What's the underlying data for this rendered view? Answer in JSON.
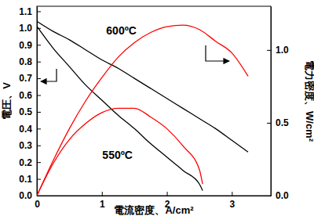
{
  "chart_data": {
    "type": "line",
    "xlabel": "電流密度、A/cm²",
    "ylabel": "電圧、V",
    "y2label": "電力密度、W/cm²",
    "xlim": [
      0,
      3.6
    ],
    "xticks": [
      0,
      1,
      2,
      3
    ],
    "ylim": [
      0,
      1.13
    ],
    "yticks": [
      {
        "value": 0,
        "label": "0.0"
      },
      0.1,
      0.2,
      0.3,
      0.4,
      0.5,
      0.6,
      0.7,
      0.8,
      0.9,
      {
        "value": 1,
        "label": "1.0"
      },
      1.1
    ],
    "y2lim": [
      0,
      1.3
    ],
    "y2ticks": [
      {
        "value": 0,
        "label": "0.0"
      },
      0.5,
      {
        "value": 1,
        "label": "1.0"
      }
    ],
    "grid": false,
    "series": [
      {
        "color": "#000000",
        "line_style": "solid",
        "x": [
          0,
          0.25,
          0.5,
          0.75,
          1,
          1.25,
          1.5,
          1.75,
          2,
          2.25,
          2.5,
          2.75,
          3,
          3.25
        ],
        "values": [
          1.04,
          0.98,
          0.93,
          0.87,
          0.81,
          0.76,
          0.7,
          0.64,
          0.58,
          0.52,
          0.46,
          0.4,
          0.33,
          0.26
        ]
      },
      {
        "color": "#000000",
        "line_style": "solid",
        "x": [
          0,
          0.25,
          0.5,
          0.75,
          1,
          1.25,
          1.5,
          1.75,
          2,
          2.25,
          2.5,
          2.55
        ],
        "values": [
          1.01,
          0.88,
          0.77,
          0.66,
          0.57,
          0.48,
          0.4,
          0.31,
          0.23,
          0.15,
          0.07,
          0.03
        ]
      },
      {
        "color": "#ff0000",
        "line_style": "solid",
        "axis": "y2",
        "x": [
          0,
          0.25,
          0.5,
          0.75,
          1,
          1.25,
          1.5,
          1.75,
          2,
          2.25,
          2.5,
          2.75,
          3,
          3.25
        ],
        "values": [
          0,
          0.24,
          0.46,
          0.65,
          0.81,
          0.95,
          1.05,
          1.12,
          1.16,
          1.17,
          1.14,
          1.06,
          0.98,
          0.82
        ]
      },
      {
        "color": "#ff0000",
        "line_style": "solid",
        "axis": "y2",
        "x": [
          0,
          0.25,
          0.5,
          0.75,
          1,
          1.25,
          1.5,
          1.75,
          2,
          2.25,
          2.5,
          2.55
        ],
        "values": [
          0,
          0.22,
          0.385,
          0.495,
          0.57,
          0.6,
          0.6,
          0.54,
          0.46,
          0.34,
          0.18,
          0.08
        ]
      }
    ],
    "annotations": [
      {
        "text": "600ºC",
        "x": 1.3,
        "y": 0.96
      },
      {
        "text": "550ºC",
        "x": 1.24,
        "y": 0.22
      }
    ]
  }
}
